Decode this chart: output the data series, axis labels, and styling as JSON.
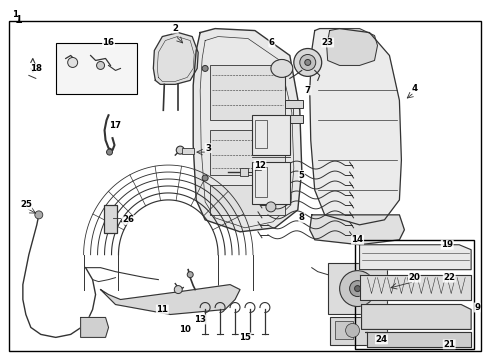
{
  "bg_color": "#ffffff",
  "border_color": "#000000",
  "line_color": "#333333",
  "fig_width": 4.9,
  "fig_height": 3.6,
  "dpi": 100
}
